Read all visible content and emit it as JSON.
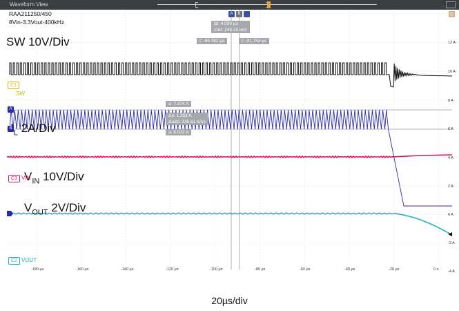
{
  "window": {
    "title": "Waveform View"
  },
  "header": {
    "model": "RAA211250/450",
    "conditions": "8Vin-3.3Vout-400kHz"
  },
  "labels": {
    "sw": "SW 10V/Div",
    "il_main": "I",
    "il_sub": "L",
    "il_tail": " 2A/Div",
    "vin_main": "V",
    "vin_sub": "IN",
    "vin_tail": " 10V/Div",
    "vout_main": "V",
    "vout_sub": "OUT",
    "vout_tail": " 2V/Div",
    "timebase": "20µs/div"
  },
  "channels": [
    {
      "tag": "C1",
      "name": "SW",
      "color": "#c9b800"
    },
    {
      "tag": "C3",
      "name": "VIN",
      "color": "#d81b50"
    },
    {
      "tag": "C2",
      "name": "VOUT",
      "color": "#1fb4c0"
    }
  ],
  "cursor_tags": {
    "a": "A",
    "b": "B",
    "top": "A",
    "top_b": "B"
  },
  "readouts": {
    "dt": "Δt: 4.030 µs",
    "inv_dt": "1/Δt: 248.15 kHz",
    "t_a": "t: -95.782 µs",
    "t_b": "t: -91.753 µs",
    "a_val": "a: 7.374 A",
    "da": "Δa: 1.352 A",
    "da_dt": "Δa/Δt: 335.61 kA/s",
    "b_val": "a: 6.022 A"
  },
  "x_ticks": [
    "-180 µs",
    "-160 µs",
    "-140 µs",
    "-120 µs",
    "-100 µs",
    "-80 µs",
    "-60 µs",
    "-40 µs",
    "-20 µs",
    "0 s"
  ],
  "right_scale": [
    "12 A",
    "10 A",
    "8 A",
    "6 A",
    "4 A",
    "2 A",
    "0 A",
    "-2 A",
    "-4 A"
  ],
  "colors": {
    "sw": "#111111",
    "il": "#2a2ab0",
    "vin": "#d81b50",
    "vout": "#1fb4c0",
    "cursor": "#9a9a9a"
  }
}
